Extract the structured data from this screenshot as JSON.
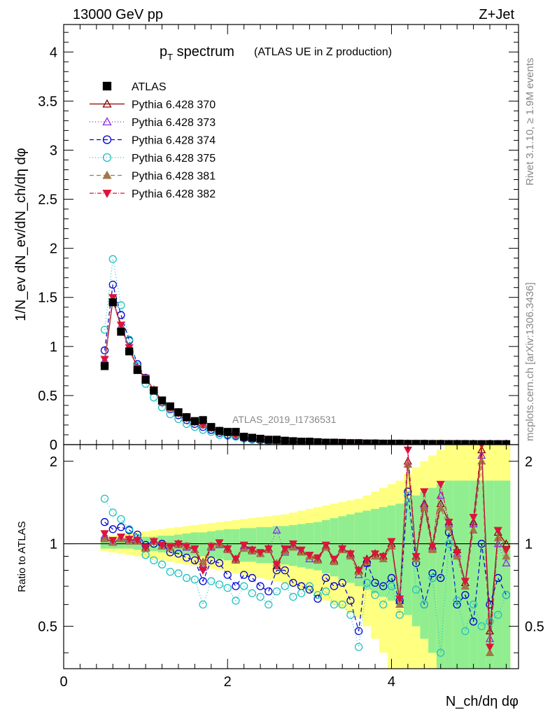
{
  "header": {
    "energy_label": "13000 GeV pp",
    "process_label": "Z+Jet"
  },
  "side_text": {
    "rivet": "Rivet 3.1.10, ≥ 1.9M events",
    "mcplots": "mcplots.cern.ch [arXiv:1306.3436]"
  },
  "chart_data": [
    {
      "type": "scatter",
      "panel": "main",
      "title_main": "p",
      "title_sub": "T",
      "title_rest": " spectrum",
      "title_note": "(ATLAS UE in Z production)",
      "analysis_label": "ATLAS_2019_I1736531",
      "ylabel": "1/N_ev dN_ev/dN_ch/dη dφ",
      "xlabel": "N_ch/dη dφ",
      "xlim": [
        0,
        5.55
      ],
      "ylim": [
        0,
        4.28
      ],
      "x_ticks": [
        "0",
        "2",
        "4"
      ],
      "y_ticks": [
        "0",
        "0.5",
        "1",
        "1.5",
        "2",
        "2.5",
        "3",
        "3.5",
        "4"
      ],
      "legend_position": "top-left",
      "x": [
        0.5,
        0.6,
        0.7,
        0.8,
        0.9,
        1.0,
        1.1,
        1.2,
        1.3,
        1.4,
        1.5,
        1.6,
        1.7,
        1.8,
        1.9,
        2.0,
        2.1,
        2.2,
        2.3,
        2.4,
        2.5,
        2.6,
        2.7,
        2.8,
        2.9,
        3.0,
        3.1,
        3.2,
        3.3,
        3.4,
        3.5,
        3.6,
        3.7,
        3.8,
        3.9,
        4.0,
        4.1,
        4.2,
        4.3,
        4.4,
        4.5,
        4.6,
        4.7,
        4.8,
        4.9,
        5.0,
        5.1,
        5.2,
        5.3,
        5.4
      ],
      "series": [
        {
          "name": "ATLAS",
          "color": "#000000",
          "marker": "square",
          "dash": "",
          "y": [
            0.8,
            1.45,
            1.15,
            0.95,
            0.76,
            0.66,
            0.55,
            0.45,
            0.39,
            0.33,
            0.28,
            0.24,
            0.25,
            0.18,
            0.14,
            0.13,
            0.13,
            0.08,
            0.07,
            0.06,
            0.05,
            0.05,
            0.04,
            0.035,
            0.03,
            0.03,
            0.025,
            0.02,
            0.02,
            0.018,
            0.015,
            0.015,
            0.012,
            0.012,
            0.01,
            0.01,
            0.01,
            0.008,
            0.008,
            0.008,
            0.007,
            0.007,
            0.006,
            0.006,
            0.006,
            0.005,
            0.005,
            0.005,
            0.005,
            0.005
          ]
        },
        {
          "name": "Pythia 6.428 370",
          "color": "#8b0000",
          "marker": "triangle-open",
          "dash": "",
          "y": [
            0.84,
            1.47,
            1.2,
            0.98,
            0.78,
            0.68,
            0.56,
            0.44,
            0.38,
            0.33,
            0.28,
            0.23,
            0.21,
            0.17,
            0.14,
            0.12,
            0.11,
            0.08,
            0.065,
            0.055,
            0.048,
            0.04,
            0.038,
            0.033,
            0.028,
            0.026,
            0.022,
            0.02,
            0.018,
            0.016,
            0.014,
            0.013,
            0.011,
            0.011,
            0.009,
            0.009,
            0.008,
            0.008,
            0.007,
            0.007,
            0.006,
            0.006,
            0.006,
            0.005,
            0.005,
            0.005,
            0.005,
            0.005,
            0.005,
            0.005
          ]
        },
        {
          "name": "Pythia 6.428 373",
          "color": "#8a2be2",
          "marker": "triangle-open",
          "dash": "1,3",
          "y": [
            0.86,
            1.48,
            1.21,
            0.99,
            0.79,
            0.68,
            0.56,
            0.44,
            0.38,
            0.32,
            0.27,
            0.23,
            0.2,
            0.17,
            0.14,
            0.12,
            0.1,
            0.08,
            0.065,
            0.055,
            0.047,
            0.042,
            0.036,
            0.032,
            0.028,
            0.025,
            0.022,
            0.02,
            0.018,
            0.016,
            0.014,
            0.013,
            0.011,
            0.01,
            0.009,
            0.009,
            0.008,
            0.008,
            0.007,
            0.007,
            0.006,
            0.006,
            0.006,
            0.005,
            0.005,
            0.005,
            0.005,
            0.005,
            0.005,
            0.005
          ]
        },
        {
          "name": "Pythia 6.428 374",
          "color": "#0000cd",
          "marker": "circle-open",
          "dash": "6,4",
          "y": [
            0.96,
            1.63,
            1.32,
            1.06,
            0.82,
            0.68,
            0.55,
            0.43,
            0.36,
            0.3,
            0.25,
            0.21,
            0.18,
            0.15,
            0.12,
            0.1,
            0.09,
            0.07,
            0.055,
            0.045,
            0.037,
            0.032,
            0.028,
            0.025,
            0.022,
            0.02,
            0.018,
            0.016,
            0.014,
            0.013,
            0.011,
            0.01,
            0.009,
            0.008,
            0.007,
            0.007,
            0.006,
            0.006,
            0.006,
            0.005,
            0.005,
            0.005,
            0.005,
            0.005,
            0.005,
            0.005,
            0.005,
            0.005,
            0.005,
            0.005
          ]
        },
        {
          "name": "Pythia 6.428 375",
          "color": "#20c0c0",
          "marker": "circle-open",
          "dash": "1,3",
          "y": [
            1.17,
            1.89,
            1.42,
            1.07,
            0.8,
            0.62,
            0.48,
            0.38,
            0.31,
            0.26,
            0.21,
            0.18,
            0.15,
            0.13,
            0.1,
            0.09,
            0.08,
            0.06,
            0.05,
            0.04,
            0.033,
            0.028,
            0.025,
            0.022,
            0.02,
            0.018,
            0.016,
            0.014,
            0.012,
            0.011,
            0.01,
            0.009,
            0.008,
            0.007,
            0.007,
            0.006,
            0.006,
            0.005,
            0.005,
            0.005,
            0.005,
            0.005,
            0.005,
            0.005,
            0.005,
            0.005,
            0.005,
            0.005,
            0.005,
            0.005
          ]
        },
        {
          "name": "Pythia 6.428 381",
          "color": "#a0784a",
          "marker": "triangle-filled",
          "dash": "6,4",
          "y": [
            0.83,
            1.46,
            1.2,
            0.97,
            0.77,
            0.67,
            0.56,
            0.44,
            0.37,
            0.32,
            0.27,
            0.23,
            0.21,
            0.17,
            0.14,
            0.12,
            0.1,
            0.08,
            0.065,
            0.055,
            0.047,
            0.04,
            0.036,
            0.032,
            0.028,
            0.025,
            0.022,
            0.02,
            0.018,
            0.016,
            0.014,
            0.013,
            0.011,
            0.011,
            0.009,
            0.009,
            0.008,
            0.008,
            0.007,
            0.007,
            0.006,
            0.006,
            0.006,
            0.005,
            0.005,
            0.005,
            0.005,
            0.005,
            0.005,
            0.005
          ]
        },
        {
          "name": "Pythia 6.428 382",
          "color": "#dc143c",
          "marker": "triangle-down-filled",
          "dash": "6,2,1,2",
          "y": [
            0.87,
            1.5,
            1.22,
            0.99,
            0.78,
            0.68,
            0.56,
            0.45,
            0.38,
            0.32,
            0.27,
            0.23,
            0.2,
            0.17,
            0.14,
            0.12,
            0.1,
            0.08,
            0.065,
            0.055,
            0.047,
            0.04,
            0.036,
            0.032,
            0.028,
            0.025,
            0.022,
            0.02,
            0.018,
            0.016,
            0.014,
            0.013,
            0.011,
            0.011,
            0.009,
            0.009,
            0.008,
            0.008,
            0.007,
            0.007,
            0.006,
            0.006,
            0.006,
            0.005,
            0.005,
            0.005,
            0.005,
            0.005,
            0.005,
            0.005
          ]
        }
      ]
    },
    {
      "type": "scatter",
      "panel": "ratio",
      "ylabel": "Ratio to ATLAS",
      "xlim": [
        0,
        5.55
      ],
      "ylim": [
        0.35,
        2.3
      ],
      "y_ticks": [
        "0.5",
        "1",
        "2"
      ],
      "reference_line": 1,
      "band_inner_color": "#90ee90",
      "band_outer_color": "#ffff80",
      "band_inner": [
        0.04,
        0.04,
        0.04,
        0.04,
        0.05,
        0.06,
        0.06,
        0.07,
        0.07,
        0.08,
        0.09,
        0.1,
        0.1,
        0.11,
        0.12,
        0.13,
        0.13,
        0.14,
        0.14,
        0.15,
        0.15,
        0.16,
        0.16,
        0.17,
        0.18,
        0.19,
        0.2,
        0.22,
        0.24,
        0.26,
        0.28,
        0.3,
        0.32,
        0.34,
        0.36,
        0.38,
        0.4,
        0.45,
        0.5,
        0.55,
        0.6,
        0.65,
        0.7,
        0.7,
        0.7,
        0.7,
        0.7,
        0.7,
        0.7,
        0.7
      ],
      "band_outer": [
        0.06,
        0.07,
        0.08,
        0.09,
        0.1,
        0.11,
        0.12,
        0.13,
        0.14,
        0.15,
        0.16,
        0.17,
        0.18,
        0.19,
        0.2,
        0.21,
        0.22,
        0.23,
        0.24,
        0.25,
        0.26,
        0.27,
        0.28,
        0.3,
        0.32,
        0.34,
        0.36,
        0.38,
        0.4,
        0.42,
        0.44,
        0.46,
        0.5,
        0.55,
        0.6,
        0.65,
        0.7,
        0.8,
        0.9,
        1.0,
        1.1,
        1.2,
        1.3,
        1.3,
        1.3,
        1.3,
        1.3,
        1.3,
        1.3,
        1.3
      ],
      "series": [
        {
          "name": "Pythia 6.428 370",
          "y": [
            1.05,
            1.01,
            1.04,
            1.03,
            1.03,
            0.97,
            1.02,
            0.98,
            0.97,
            1.0,
            0.98,
            0.95,
            0.84,
            0.98,
            1.0,
            0.96,
            0.88,
            0.98,
            0.95,
            0.92,
            0.96,
            0.83,
            0.95,
            0.99,
            0.94,
            0.9,
            0.88,
            0.98,
            0.87,
            0.96,
            0.92,
            0.8,
            0.88,
            0.92,
            0.9,
            1.0,
            0.62,
            2.0,
            0.9,
            1.4,
            0.98,
            1.4,
            1.2,
            0.95,
            0.72,
            1.2,
            2.2,
            0.48,
            1.1,
            1.0
          ]
        },
        {
          "name": "Pythia 6.428 373",
          "y": [
            1.07,
            1.02,
            1.05,
            1.04,
            1.04,
            0.96,
            1.02,
            0.98,
            0.97,
            0.99,
            0.97,
            0.95,
            0.82,
            0.97,
            0.99,
            0.95,
            0.87,
            0.98,
            0.94,
            0.92,
            0.95,
            1.12,
            0.93,
            0.98,
            0.93,
            0.88,
            0.87,
            0.97,
            0.86,
            0.95,
            0.91,
            0.77,
            0.85,
            0.9,
            0.88,
            0.98,
            0.6,
            1.95,
            0.88,
            1.38,
            0.96,
            1.5,
            1.18,
            0.92,
            0.7,
            1.18,
            2.1,
            0.45,
            1.0,
            0.85
          ]
        },
        {
          "name": "Pythia 6.428 374",
          "y": [
            1.2,
            1.13,
            1.15,
            1.12,
            1.08,
            0.99,
            1.0,
            1.0,
            0.93,
            0.92,
            0.89,
            0.87,
            0.73,
            0.87,
            0.85,
            0.77,
            0.7,
            0.77,
            0.75,
            0.7,
            0.67,
            0.8,
            0.8,
            0.72,
            0.7,
            0.68,
            0.63,
            0.75,
            0.7,
            0.72,
            0.62,
            0.48,
            0.85,
            0.72,
            0.7,
            0.75,
            0.62,
            1.55,
            0.85,
            0.6,
            0.78,
            0.75,
            1.1,
            0.6,
            0.65,
            0.52,
            1.0,
            0.6,
            0.75,
            0.65
          ]
        },
        {
          "name": "Pythia 6.428 375",
          "y": [
            1.46,
            1.3,
            1.23,
            1.13,
            1.05,
            0.91,
            0.87,
            0.84,
            0.79,
            0.78,
            0.75,
            0.74,
            0.6,
            0.73,
            0.71,
            0.69,
            0.62,
            0.7,
            0.66,
            0.64,
            0.6,
            0.67,
            0.7,
            0.64,
            0.66,
            0.7,
            0.65,
            0.67,
            0.6,
            0.6,
            0.55,
            0.42,
            0.72,
            0.65,
            0.6,
            0.7,
            0.55,
            1.5,
            0.68,
            0.6,
            0.75,
            0.4,
            1.0,
            0.62,
            0.48,
            0.6,
            0.5,
            0.52,
            0.55,
            0.65
          ]
        },
        {
          "name": "Pythia 6.428 381",
          "y": [
            1.04,
            1.01,
            1.04,
            1.02,
            1.02,
            0.96,
            1.02,
            0.98,
            0.97,
            0.99,
            0.98,
            0.95,
            0.86,
            0.98,
            1.0,
            0.95,
            0.87,
            0.96,
            0.94,
            0.92,
            0.95,
            0.85,
            0.94,
            0.97,
            0.93,
            0.9,
            0.87,
            0.97,
            0.86,
            0.95,
            0.9,
            0.79,
            0.86,
            0.9,
            0.88,
            0.98,
            0.6,
            1.95,
            0.88,
            1.35,
            0.95,
            1.35,
            1.15,
            0.9,
            0.7,
            1.12,
            2.0,
            0.4,
            1.05,
            0.9
          ]
        },
        {
          "name": "Pythia 6.428 382",
          "y": [
            1.09,
            1.03,
            1.06,
            1.04,
            1.03,
            0.97,
            1.02,
            0.99,
            0.98,
            1.0,
            0.98,
            0.96,
            0.8,
            0.98,
            1.01,
            0.96,
            0.88,
            0.99,
            0.95,
            0.93,
            0.96,
            0.84,
            0.96,
            1.0,
            0.95,
            0.91,
            0.89,
            0.99,
            0.88,
            0.96,
            0.92,
            0.8,
            0.87,
            0.92,
            0.9,
            1.02,
            0.63,
            2.2,
            0.9,
            1.55,
            0.98,
            1.65,
            1.2,
            0.93,
            0.73,
            1.25,
            2.3,
            0.42,
            1.12,
            0.95
          ]
        }
      ]
    }
  ]
}
